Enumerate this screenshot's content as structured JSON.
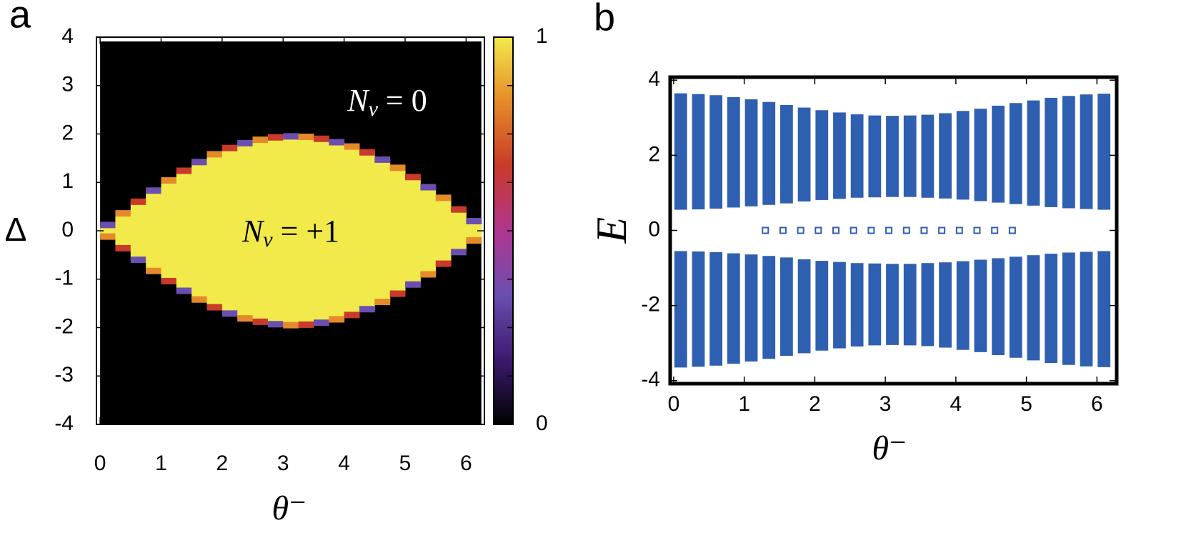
{
  "chart_data": [
    {
      "type": "heatmap",
      "panel_label": "a",
      "xlabel": "θ⁻",
      "ylabel": "Δ",
      "xlim": [
        -0.06,
        6.3
      ],
      "ylim": [
        -4,
        4
      ],
      "xticks": [
        0,
        1,
        2,
        3,
        4,
        5,
        6
      ],
      "yticks": [
        -4,
        -3,
        -2,
        -1,
        0,
        1,
        2,
        3,
        4
      ],
      "x": [
        0.125,
        0.375,
        0.625,
        0.875,
        1.125,
        1.375,
        1.625,
        1.875,
        2.125,
        2.375,
        2.625,
        2.875,
        3.125,
        3.375,
        3.625,
        3.875,
        4.125,
        4.375,
        4.625,
        4.875,
        5.125,
        5.375,
        5.625,
        5.875,
        6.125
      ],
      "boundary": [
        0.12,
        0.36,
        0.6,
        0.83,
        1.04,
        1.24,
        1.42,
        1.58,
        1.71,
        1.81,
        1.88,
        1.93,
        1.95,
        1.94,
        1.9,
        1.83,
        1.74,
        1.62,
        1.47,
        1.3,
        1.11,
        0.9,
        0.68,
        0.44,
        0.2
      ],
      "zlim": [
        0,
        1
      ],
      "zticks": [
        0,
        1
      ],
      "colormap": [
        "#000000",
        "#3b1a6e",
        "#6a4fb0",
        "#b03590",
        "#c83a2a",
        "#e58a2a",
        "#f2ea4a"
      ],
      "annotations": [
        {
          "symbol": "N",
          "sub": "v",
          "rest": " = 0"
        },
        {
          "symbol": "N",
          "sub": "v",
          "rest": " = +1"
        }
      ]
    },
    {
      "type": "band",
      "panel_label": "b",
      "xlabel": "θ⁻",
      "ylabel": "E",
      "xlim": [
        -0.05,
        6.28
      ],
      "ylim": [
        -4.08,
        4.08
      ],
      "xticks": [
        0,
        1,
        2,
        3,
        4,
        5,
        6
      ],
      "yticks": [
        -4,
        -2,
        0,
        2,
        4
      ],
      "color": "#2f5fb0",
      "x": [
        0.1,
        0.35,
        0.6,
        0.85,
        1.1,
        1.35,
        1.6,
        1.85,
        2.1,
        2.35,
        2.6,
        2.85,
        3.1,
        3.35,
        3.6,
        3.85,
        4.1,
        4.35,
        4.6,
        4.85,
        5.1,
        5.35,
        5.6,
        5.85,
        6.1
      ],
      "bands": [
        {
          "top": [
            3.65,
            3.63,
            3.6,
            3.55,
            3.49,
            3.42,
            3.34,
            3.27,
            3.2,
            3.14,
            3.09,
            3.06,
            3.05,
            3.06,
            3.08,
            3.12,
            3.18,
            3.24,
            3.32,
            3.39,
            3.46,
            3.53,
            3.58,
            3.62,
            3.64
          ],
          "bottom": [
            0.55,
            0.56,
            0.58,
            0.61,
            0.64,
            0.68,
            0.72,
            0.77,
            0.81,
            0.84,
            0.87,
            0.88,
            0.89,
            0.89,
            0.87,
            0.85,
            0.82,
            0.78,
            0.74,
            0.7,
            0.66,
            0.62,
            0.59,
            0.57,
            0.55
          ]
        },
        {
          "top": [
            -0.55,
            -0.56,
            -0.58,
            -0.61,
            -0.64,
            -0.68,
            -0.72,
            -0.77,
            -0.81,
            -0.84,
            -0.87,
            -0.88,
            -0.89,
            -0.89,
            -0.87,
            -0.85,
            -0.82,
            -0.78,
            -0.74,
            -0.7,
            -0.66,
            -0.62,
            -0.59,
            -0.57,
            -0.55
          ],
          "bottom": [
            -3.65,
            -3.63,
            -3.6,
            -3.55,
            -3.49,
            -3.42,
            -3.34,
            -3.27,
            -3.2,
            -3.14,
            -3.09,
            -3.06,
            -3.05,
            -3.06,
            -3.08,
            -3.12,
            -3.18,
            -3.24,
            -3.32,
            -3.39,
            -3.46,
            -3.53,
            -3.58,
            -3.62,
            -3.64
          ]
        }
      ],
      "zero_modes": {
        "x": [
          1.3,
          1.55,
          1.8,
          2.05,
          2.3,
          2.55,
          2.8,
          3.05,
          3.3,
          3.55,
          3.8,
          4.05,
          4.3,
          4.55,
          4.8
        ],
        "values": [
          0,
          0,
          0,
          0,
          0,
          0,
          0,
          0,
          0,
          0,
          0,
          0,
          0,
          0,
          0
        ]
      }
    }
  ]
}
